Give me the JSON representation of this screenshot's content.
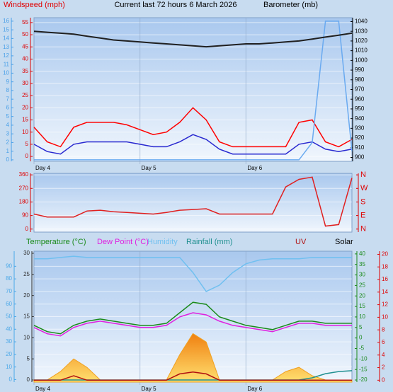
{
  "chart_data": [
    {
      "type": "line",
      "title": "Current last 72 hours 6 March 2026",
      "ylabel": "Windspeed (mph)",
      "y2label": "Barometer (mb)",
      "categories": [
        "Day 4",
        null,
        null,
        null,
        null,
        null,
        null,
        null,
        "Day 5",
        null,
        null,
        null,
        null,
        null,
        null,
        null,
        "Day 6",
        null,
        null,
        null,
        null,
        null,
        null,
        null,
        null
      ],
      "ylim": [
        -2,
        57
      ],
      "yticks": [
        0,
        5,
        10,
        15,
        20,
        25,
        30,
        35,
        40,
        45,
        50,
        55
      ],
      "y2lim": [
        896,
        1044
      ],
      "y2ticks": [
        900,
        910,
        920,
        930,
        940,
        950,
        960,
        970,
        980,
        990,
        1000,
        1010,
        1020,
        1030,
        1040
      ],
      "y3lim": [
        -0.17,
        16.4
      ],
      "y3ticks": [
        0,
        1,
        2,
        3,
        4,
        5,
        6,
        7,
        8,
        9,
        10,
        11,
        12,
        13,
        14,
        15,
        16
      ],
      "axis_colors": {
        "y": "#e00000",
        "y2": "#000000",
        "y3": "#4aa0e8"
      },
      "grid": true,
      "series": [
        {
          "color": "#ff0000",
          "values": [
            12,
            6,
            4,
            12,
            14,
            14,
            14,
            13,
            11,
            9,
            10,
            14,
            20,
            15,
            6,
            4,
            4,
            4,
            4,
            4,
            14,
            15,
            6,
            4,
            7
          ]
        },
        {
          "color": "#2828d0",
          "values": [
            5,
            2,
            1,
            5,
            6,
            6,
            6,
            6,
            5,
            4,
            4,
            6,
            9,
            7,
            3,
            1,
            1,
            1,
            1,
            1,
            5,
            6,
            3,
            2,
            3
          ]
        },
        {
          "color": "#6aaaf0",
          "axis": "y3",
          "values": [
            0,
            0,
            0,
            0,
            0,
            0,
            0,
            0,
            0,
            0,
            0,
            0,
            0,
            0,
            0,
            0,
            0,
            0,
            0,
            0,
            0,
            2,
            16,
            16,
            1
          ]
        },
        {
          "color": "#202020",
          "axis": "y2",
          "values": [
            1030,
            1029,
            1028,
            1027,
            1025,
            1023,
            1021,
            1020,
            1019,
            1018,
            1017,
            1016,
            1015,
            1014,
            1015,
            1016,
            1017,
            1017,
            1018,
            1019,
            1020,
            1022,
            1024,
            1026,
            1028
          ]
        }
      ]
    },
    {
      "type": "line",
      "ylim": [
        -20,
        370
      ],
      "yticks": [
        0,
        90,
        180,
        270,
        360
      ],
      "y2lim": [
        -20,
        370
      ],
      "y2ticks": [
        {
          "value": 0,
          "label": "N"
        },
        {
          "value": 90,
          "label": "E"
        },
        {
          "value": 180,
          "label": "S"
        },
        {
          "value": 270,
          "label": "W"
        },
        {
          "value": 360,
          "label": "N"
        }
      ],
      "axis_colors": {
        "y": "#e00000",
        "y2": "#e00000"
      },
      "grid": true,
      "series": [
        {
          "color": "#e02020",
          "values": [
            100,
            80,
            80,
            80,
            120,
            125,
            115,
            110,
            105,
            100,
            110,
            125,
            130,
            135,
            100,
            100,
            100,
            100,
            100,
            280,
            330,
            345,
            20,
            30,
            340
          ]
        }
      ]
    },
    {
      "type": "line",
      "categories": [
        "Day 4",
        null,
        null,
        null,
        null,
        null,
        null,
        null,
        "Day 5",
        null,
        null,
        null,
        null,
        null,
        null,
        null,
        "Day 6",
        null,
        null,
        null,
        null,
        null,
        null,
        null,
        null
      ],
      "ylim": [
        -2,
        102
      ],
      "yticks": [
        0,
        10,
        20,
        30,
        40,
        50,
        60,
        70,
        80,
        90
      ],
      "y3lim": [
        -0.5,
        30.5
      ],
      "y3ticks": [
        0,
        5,
        10,
        15,
        20,
        25,
        30
      ],
      "y2lim": [
        -21,
        41.3
      ],
      "y2ticks": [
        -20,
        -15,
        -10,
        -5,
        0,
        5,
        10,
        15,
        20,
        25,
        30,
        35,
        40
      ],
      "y4lim": [
        -0.3,
        20.5
      ],
      "y4ticks": [
        0,
        2,
        4,
        6,
        8,
        10,
        12,
        14,
        16,
        18,
        20
      ],
      "axis_colors": {
        "y": "#4aa8e8",
        "y3": "#303030",
        "y2": "#1a8a1a",
        "y4": "#e00000"
      },
      "grid": true,
      "series": [
        {
          "name": "Solar",
          "color": "#f0a020",
          "area": true,
          "axis": "y3",
          "values": [
            0,
            0,
            2,
            5,
            3,
            0,
            0,
            0,
            0,
            0,
            0,
            6,
            11,
            9,
            0,
            0,
            0,
            0,
            0,
            2,
            3,
            1,
            0,
            0,
            0
          ]
        },
        {
          "name": "Humidity",
          "color": "#70c0f0",
          "values": [
            96,
            96,
            97,
            98,
            97,
            97,
            97,
            97,
            97,
            97,
            97,
            97,
            85,
            70,
            75,
            85,
            92,
            95,
            96,
            96,
            96,
            97,
            97,
            97,
            97
          ]
        },
        {
          "name": "Temperature (°C)",
          "color": "#1a8a1a",
          "axis": "y2",
          "values": [
            6,
            3,
            2,
            6,
            8,
            9,
            8,
            7,
            6,
            6,
            7,
            12,
            17,
            16,
            10,
            8,
            6,
            5,
            4,
            6,
            8,
            8,
            7,
            7,
            7
          ]
        },
        {
          "name": "Dew Point (°C)",
          "color": "#e020e0",
          "axis": "y2",
          "values": [
            5,
            2,
            1,
            5,
            7,
            8,
            7,
            6,
            5,
            5,
            6,
            10,
            12,
            11,
            8,
            6,
            5,
            4,
            3,
            5,
            7,
            7,
            6,
            6,
            6
          ]
        },
        {
          "name": "Rainfall (mm)",
          "color": "#209090",
          "axis": "y3",
          "values": [
            0,
            0,
            0,
            0,
            0,
            0,
            0,
            0,
            0,
            0,
            0,
            0,
            0,
            0,
            0,
            0,
            0,
            0,
            0,
            0,
            0,
            0.5,
            1.5,
            2,
            2.2
          ]
        },
        {
          "name": "UV",
          "color": "#b01010",
          "axis": "y4",
          "values": [
            0,
            0,
            0,
            0.7,
            0,
            0,
            0,
            0,
            0,
            0,
            0,
            1,
            1.3,
            1,
            0,
            0,
            0,
            0,
            0,
            0,
            0,
            0,
            0,
            0,
            0
          ]
        }
      ]
    }
  ]
}
